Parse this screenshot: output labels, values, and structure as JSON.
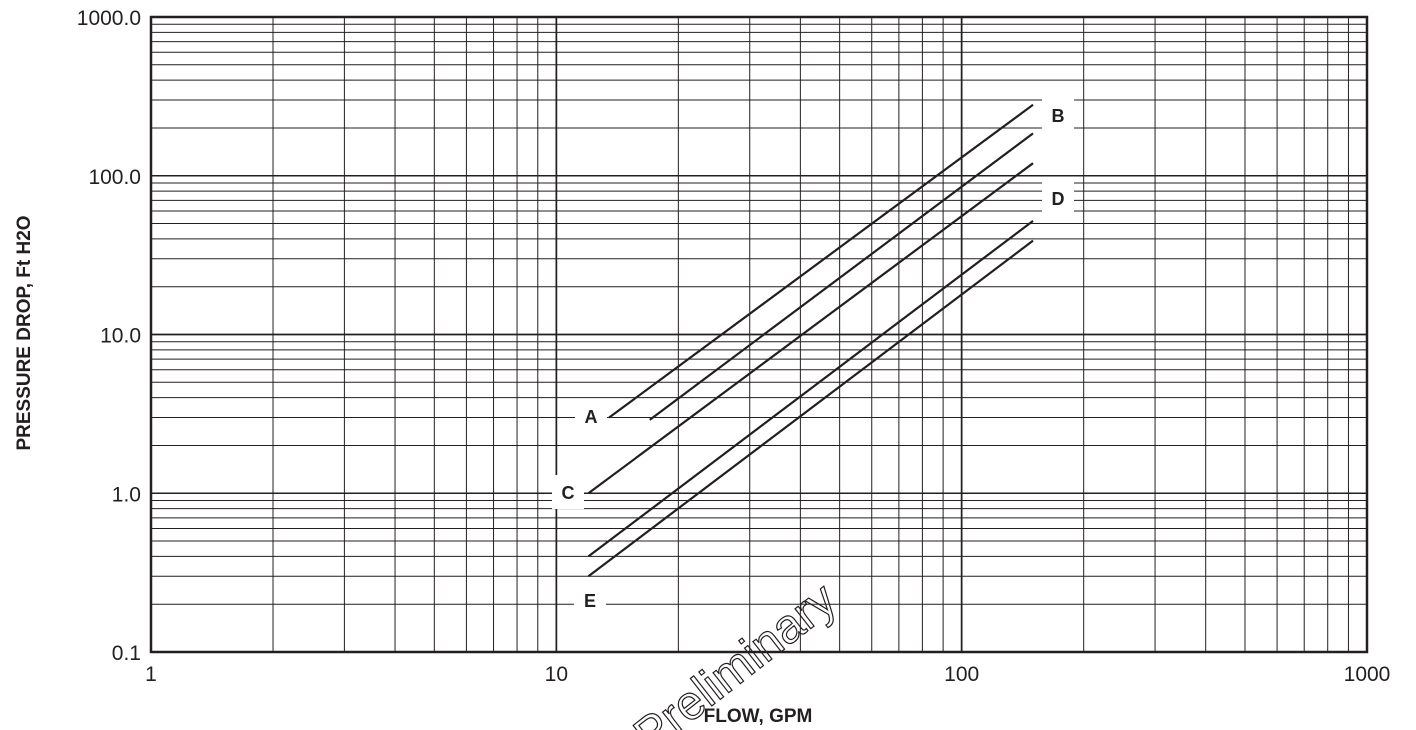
{
  "chart_data": {
    "type": "line",
    "xlabel": "FLOW, GPM",
    "ylabel": "PRESSURE DROP, Ft H2O",
    "xscale": "log",
    "yscale": "log",
    "xlim": [
      1,
      1000
    ],
    "ylim": [
      0.1,
      1000
    ],
    "x_ticks": [
      "1",
      "10",
      "100",
      "1000"
    ],
    "y_ticks": [
      "0.1",
      "1.0",
      "10.0",
      "100.0",
      "1000.0"
    ],
    "grid": true,
    "watermark": "Preliminary",
    "series": [
      {
        "name": "A",
        "points": [
          [
            13.5,
            3.0
          ],
          [
            150,
            280
          ]
        ]
      },
      {
        "name": "B",
        "points": [
          [
            17,
            2.9
          ],
          [
            150,
            185
          ]
        ]
      },
      {
        "name": "C",
        "points": [
          [
            12,
            1.0
          ],
          [
            150,
            120
          ]
        ]
      },
      {
        "name": "D",
        "points": [
          [
            12,
            0.4
          ],
          [
            150,
            52
          ]
        ]
      },
      {
        "name": "E",
        "points": [
          [
            12,
            0.3
          ],
          [
            150,
            39
          ]
        ]
      }
    ]
  }
}
